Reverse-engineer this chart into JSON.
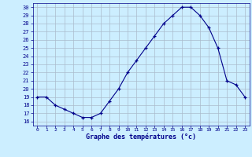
{
  "hours": [
    0,
    1,
    2,
    3,
    4,
    5,
    6,
    7,
    8,
    9,
    10,
    11,
    12,
    13,
    14,
    15,
    16,
    17,
    18,
    19,
    20,
    21,
    22,
    23
  ],
  "temps": [
    19,
    19,
    18,
    17.5,
    17,
    16.5,
    16.5,
    17,
    18.5,
    20,
    22,
    23.5,
    25,
    26.5,
    28,
    29,
    30,
    30,
    29,
    27.5,
    25,
    21,
    20.5,
    19
  ],
  "xlim": [
    -0.5,
    23.5
  ],
  "ylim": [
    15.5,
    30.5
  ],
  "yticks": [
    16,
    17,
    18,
    19,
    20,
    21,
    22,
    23,
    24,
    25,
    26,
    27,
    28,
    29,
    30
  ],
  "xticks": [
    0,
    1,
    2,
    3,
    4,
    5,
    6,
    7,
    8,
    9,
    10,
    11,
    12,
    13,
    14,
    15,
    16,
    17,
    18,
    19,
    20,
    21,
    22,
    23
  ],
  "xlabel": "Graphe des températures (°c)",
  "line_color": "#00008b",
  "marker_color": "#00008b",
  "bg_color": "#cceeff",
  "grid_color": "#aabbcc",
  "xlabel_color": "#00008b"
}
